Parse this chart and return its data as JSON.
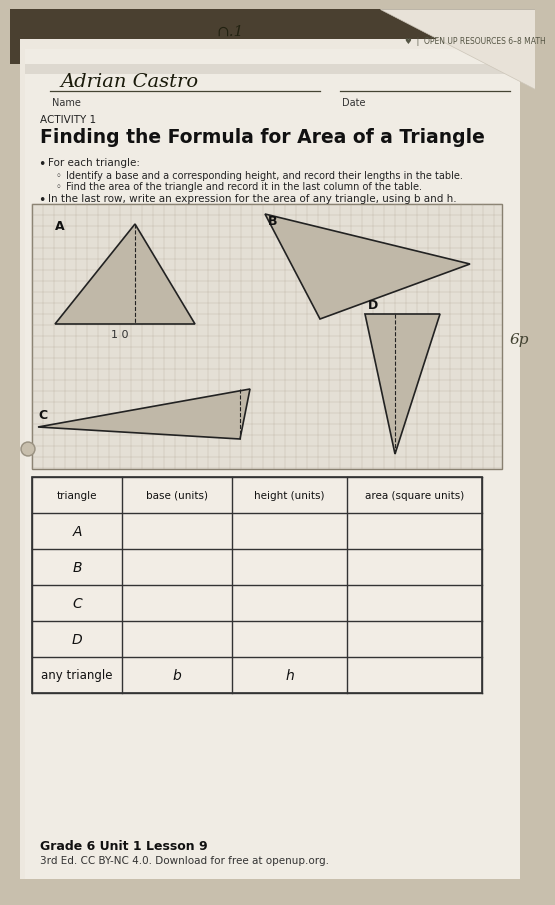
{
  "bg_color": "#c8bfad",
  "paper_color": "#f0ece4",
  "activity_label": "ACTIVITY 1",
  "title": "Finding the Formula for Area of a Triangle",
  "bullet1": "For each triangle:",
  "sub1": "Identify a base and a corresponding height, and record their lengths in the table.",
  "sub2": "Find the area of the triangle and record it in the last column of the table.",
  "bullet2": "In the last row, write an expression for the area of any triangle, using b and h.",
  "name_label": "Name",
  "date_label": "Date",
  "handwritten_name": "Adrian Castro",
  "header_text": "OPEN UP RESOURCES 6–8 MATH",
  "table_headers": [
    "triangle",
    "base (units)",
    "height (units)",
    "area (square units)"
  ],
  "table_rows": [
    [
      "A",
      "",
      "",
      ""
    ],
    [
      "B",
      "",
      "",
      ""
    ],
    [
      "C",
      "",
      "",
      ""
    ],
    [
      "D",
      "",
      "",
      ""
    ],
    [
      "any triangle",
      "b",
      "h",
      ""
    ]
  ],
  "footer1": "Grade 6 Unit 1 Lesson 9",
  "footer2": "3rd Ed. CC BY-NC 4.0. Download for free at openup.org.",
  "grid_color": "#aaa090",
  "triangle_fill": "#c0b8a8",
  "triangle_edge": "#222222",
  "note_text": "6p"
}
